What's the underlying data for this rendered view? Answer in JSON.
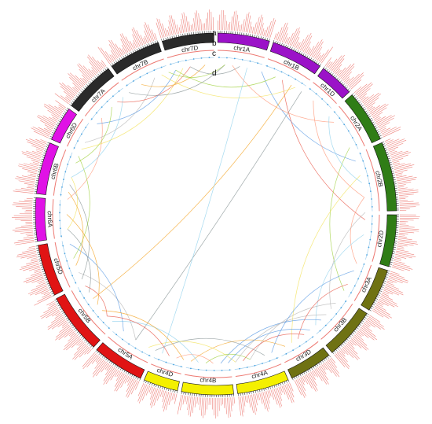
{
  "figure": {
    "ring_labels": [
      "a",
      "b",
      "c",
      "d"
    ],
    "chromosomes": [
      {
        "name": "chr1A",
        "color": "#9b12c8",
        "size": 6
      },
      {
        "name": "chr1B",
        "color": "#9b12c8",
        "size": 6
      },
      {
        "name": "chr1D",
        "color": "#9b12c8",
        "size": 4
      },
      {
        "name": "chr2A",
        "color": "#2f7d16",
        "size": 6
      },
      {
        "name": "chr2B",
        "color": "#2f7d16",
        "size": 8
      },
      {
        "name": "chr2D",
        "color": "#2f7d16",
        "size": 6
      },
      {
        "name": "chr3A",
        "color": "#6f7213",
        "size": 5
      },
      {
        "name": "chr3B",
        "color": "#6f7213",
        "size": 6
      },
      {
        "name": "chr3D",
        "color": "#6f7213",
        "size": 5
      },
      {
        "name": "chr4A",
        "color": "#f4f000",
        "size": 6
      },
      {
        "name": "chr4B",
        "color": "#f4f000",
        "size": 6
      },
      {
        "name": "chr4D",
        "color": "#f4f000",
        "size": 4
      },
      {
        "name": "chr5A",
        "color": "#e01414",
        "size": 6
      },
      {
        "name": "chr5B",
        "color": "#e01414",
        "size": 7
      },
      {
        "name": "chr5D",
        "color": "#e01414",
        "size": 6
      },
      {
        "name": "chr6A",
        "color": "#e012e6",
        "size": 5
      },
      {
        "name": "chr6B",
        "color": "#e012e6",
        "size": 6
      },
      {
        "name": "chr6D",
        "color": "#e012e6",
        "size": 4
      },
      {
        "name": "chr7A",
        "color": "#2a2a2a",
        "size": 6
      },
      {
        "name": "chr7B",
        "color": "#2a2a2a",
        "size": 6
      },
      {
        "name": "chr7D",
        "color": "#2a2a2a",
        "size": 6
      }
    ],
    "colors": {
      "gene_label": "#e8584f",
      "ring_b": "#e8584f",
      "ring_c": "#4aa3df",
      "link_palette": [
        "#4a90e2",
        "#e74c3c",
        "#f39c12",
        "#7f8c8d",
        "#9acd32",
        "#f1e04f",
        "#ff8c69",
        "#87ceeb",
        "#b0b0b0"
      ]
    },
    "links": [
      [
        0.3,
        1.2
      ],
      [
        0.45,
        1.6
      ],
      [
        0.52,
        4.1
      ],
      [
        0.6,
        3.7
      ],
      [
        1.1,
        2.1
      ],
      [
        1.3,
        2.6
      ],
      [
        1.45,
        1.9
      ],
      [
        1.7,
        2.4
      ],
      [
        2.2,
        2.9
      ],
      [
        2.35,
        3.1
      ],
      [
        2.5,
        2.95
      ],
      [
        2.65,
        3.3
      ],
      [
        2.8,
        3.55
      ],
      [
        2.9,
        3.2
      ],
      [
        3.0,
        3.6
      ],
      [
        3.15,
        3.4
      ],
      [
        3.25,
        3.9
      ],
      [
        3.7,
        4.3
      ],
      [
        3.8,
        4.5
      ],
      [
        3.95,
        4.2
      ],
      [
        4.05,
        4.7
      ],
      [
        4.25,
        4.9
      ],
      [
        4.4,
        5.1
      ],
      [
        4.6,
        4.95
      ],
      [
        4.8,
        5.4
      ],
      [
        4.95,
        5.6
      ],
      [
        5.2,
        5.85
      ],
      [
        5.35,
        6.0
      ],
      [
        5.55,
        6.1
      ],
      [
        5.75,
        6.2
      ],
      [
        6.1,
        0.15
      ],
      [
        6.0,
        0.4
      ],
      [
        5.9,
        0.55
      ],
      [
        0.1,
        0.9
      ],
      [
        0.2,
        3.5
      ],
      [
        2.3,
        3.0
      ],
      [
        1.95,
        2.75
      ],
      [
        2.05,
        2.55
      ],
      [
        3.35,
        4.0
      ],
      [
        4.15,
        4.6
      ],
      [
        5.05,
        5.5
      ],
      [
        5.15,
        6.05
      ],
      [
        0.7,
        1.45
      ],
      [
        0.85,
        1.35
      ],
      [
        1.55,
        2.25
      ],
      [
        2.45,
        3.05
      ],
      [
        3.45,
        3.95
      ],
      [
        4.35,
        4.85
      ],
      [
        5.65,
        0.05
      ],
      [
        0.05,
        5.95
      ]
    ]
  }
}
